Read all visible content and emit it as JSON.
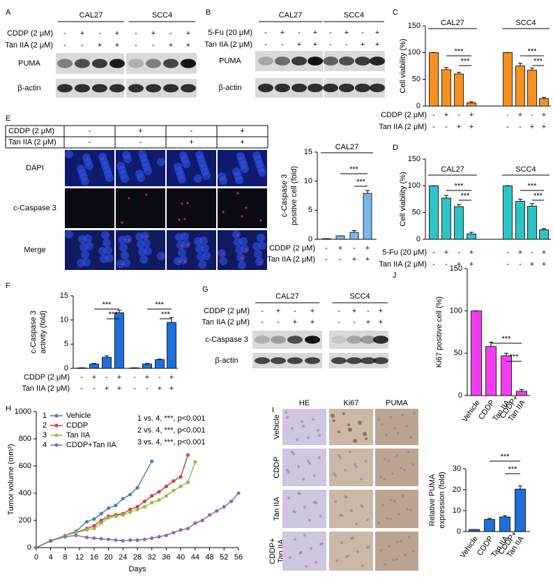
{
  "panels": {
    "A": {
      "label": "A",
      "groups": [
        "CAL27",
        "SCC4"
      ],
      "conditions": [
        {
          "name": "CDDP (2 μM)",
          "signs": [
            "-",
            "+",
            "-",
            "+",
            "-",
            "+",
            "-",
            "+"
          ]
        },
        {
          "name": "Tan IIA (2 μM)",
          "signs": [
            "-",
            "-",
            "+",
            "+",
            "-",
            "-",
            "+",
            "+"
          ]
        }
      ],
      "rows": [
        "PUMA",
        "β-actin"
      ]
    },
    "B": {
      "label": "B",
      "groups": [
        "CAL27",
        "SCC4"
      ],
      "conditions": [
        {
          "name": "5-Fu (20 μM)",
          "signs": [
            "-",
            "+",
            "-",
            "+",
            "-",
            "+",
            "-",
            "+"
          ]
        },
        {
          "name": "Tan IIA (2 μM)",
          "signs": [
            "-",
            "-",
            "+",
            "+",
            "-",
            "-",
            "+",
            "+"
          ]
        }
      ],
      "rows": [
        "PUMA",
        "β-actin"
      ]
    },
    "E": {
      "label": "E",
      "conditions": [
        {
          "name": "CDDP (2 μM)",
          "signs": [
            "-",
            "+",
            "-",
            "+"
          ]
        },
        {
          "name": "Tan IIA (2 μM)",
          "signs": [
            "-",
            "-",
            "+",
            "+"
          ]
        }
      ],
      "rows": [
        "DAPI",
        "c-Caspase 3",
        "Merge"
      ]
    },
    "G": {
      "label": "G",
      "groups": [
        "CAL27",
        "SCC4"
      ],
      "conditions": [
        {
          "name": "CDDP (2 μM)",
          "signs": [
            "-",
            "+",
            "-",
            "+",
            "-",
            "+",
            "-",
            "+"
          ]
        },
        {
          "name": "Tan IIA (2 μM)",
          "signs": [
            "-",
            "-",
            "+",
            "+",
            "-",
            "-",
            "+",
            "+"
          ]
        }
      ],
      "rows": [
        "c-Caspase 3",
        "β-actin"
      ]
    },
    "I": {
      "label": "I",
      "columns": [
        "HE",
        "Ki67",
        "PUMA"
      ],
      "rows": [
        [
          "Vehicle"
        ],
        [
          "CDDP"
        ],
        [
          "Tan IIA"
        ],
        [
          "CDDP+",
          "Tan IIA"
        ]
      ]
    }
  },
  "chart_data": [
    {
      "type": "bar",
      "label": "C",
      "ylabel": [
        "Cell viability (%)"
      ],
      "ylim": [
        0,
        150
      ],
      "yticks": [
        0,
        50,
        100,
        150
      ],
      "series": [
        {
          "name": "CAL27",
          "color": "#f7901e",
          "values": [
            100,
            68,
            60,
            6
          ],
          "errors": [
            0,
            4,
            3,
            2
          ]
        },
        {
          "name": "SCC4",
          "color": "#f7901e",
          "values": [
            100,
            75,
            67,
            14
          ],
          "errors": [
            0,
            5,
            4,
            2
          ]
        }
      ],
      "conditions": [
        {
          "name": "CDDP (2 μM)",
          "signs": [
            "-",
            "+",
            "-",
            "+",
            "-",
            "+",
            "-",
            "+"
          ]
        },
        {
          "name": "Tan IIA (2 μM)",
          "signs": [
            "-",
            "-",
            "+",
            "+",
            "-",
            "-",
            "+",
            "+"
          ]
        }
      ],
      "annotations": [
        "***",
        "***",
        "***",
        "***"
      ]
    },
    {
      "type": "bar",
      "label": "D",
      "ylabel": [
        "Cell viability (%)"
      ],
      "ylim": [
        0,
        150
      ],
      "yticks": [
        0,
        50,
        100,
        150
      ],
      "series": [
        {
          "name": "CAL27",
          "color": "#2cc4c4",
          "values": [
            100,
            77,
            61,
            10
          ],
          "errors": [
            0,
            5,
            4,
            3
          ]
        },
        {
          "name": "SCC4",
          "color": "#2cc4c4",
          "values": [
            100,
            71,
            62,
            18
          ],
          "errors": [
            0,
            4,
            5,
            2
          ]
        }
      ],
      "conditions": [
        {
          "name": "5-Fu (20 μM)",
          "signs": [
            "-",
            "+",
            "-",
            "+",
            "-",
            "+",
            "-",
            "+"
          ]
        },
        {
          "name": "Tan IIA (2 μM)",
          "signs": [
            "-",
            "-",
            "+",
            "+",
            "-",
            "-",
            "+",
            "+"
          ]
        }
      ],
      "annotations": [
        "***",
        "***",
        "***",
        "***"
      ]
    },
    {
      "type": "bar",
      "ylabel": [
        "c-Caspase 3",
        "positive cell (fold)"
      ],
      "ylim": [
        0,
        15
      ],
      "yticks": [
        0,
        5,
        10,
        15
      ],
      "series": [
        {
          "name": "CAL27",
          "color": "#7bb6ea",
          "values": [
            0.1,
            0.6,
            1.2,
            7.9
          ],
          "errors": [
            0,
            0,
            0.3,
            0.5
          ]
        }
      ],
      "conditions": [
        {
          "name": "CDDP (2 μM)",
          "signs": [
            "-",
            "+",
            "-",
            "+"
          ]
        },
        {
          "name": "Tan IIA (2 μM)",
          "signs": [
            "-",
            "-",
            "+",
            "+"
          ]
        }
      ],
      "annotations": [
        "***",
        "***"
      ]
    },
    {
      "type": "bar",
      "label": "F",
      "ylabel": [
        "c-Caspase 3",
        "activity (fold)"
      ],
      "ylim": [
        0,
        15
      ],
      "yticks": [
        0,
        5,
        10,
        15
      ],
      "series": [
        {
          "color": "#1e6fd9",
          "values": [
            0.1,
            0.9,
            2.3,
            11.5
          ],
          "errors": [
            0,
            0.1,
            0.3,
            0.5
          ]
        },
        {
          "color": "#1e6fd9",
          "values": [
            0.1,
            0.9,
            1.8,
            9.5
          ],
          "errors": [
            0,
            0.1,
            0.1,
            1
          ]
        }
      ],
      "conditions": [
        {
          "name": "CDDP (2 μM)",
          "signs": [
            "-",
            "+",
            "-",
            "+",
            "-",
            "+",
            "-",
            "+"
          ]
        },
        {
          "name": "Tan IIA (2 μM)",
          "signs": [
            "-",
            "-",
            "+",
            "+",
            "-",
            "-",
            "+",
            "+"
          ]
        }
      ],
      "annotations": [
        "***",
        "***",
        "***",
        "***"
      ]
    },
    {
      "type": "line",
      "label": "H",
      "xlabel": "Days",
      "ylabel": [
        "Tumor volume (mm³)"
      ],
      "xlim": [
        0,
        56
      ],
      "xticks": [
        0,
        4,
        8,
        12,
        16,
        20,
        24,
        28,
        32,
        36,
        40,
        44,
        48,
        52,
        56
      ],
      "ylim": [
        0,
        1000
      ],
      "yticks": [
        0,
        200,
        400,
        600,
        800,
        1000
      ],
      "series": [
        {
          "number": 1,
          "name": "Vehicle",
          "color": "#4a7fc1",
          "x": [
            0,
            4,
            8,
            11,
            14,
            16,
            18,
            20,
            22,
            24,
            26,
            28,
            32
          ],
          "values": [
            0,
            50,
            90,
            120,
            190,
            210,
            250,
            290,
            310,
            360,
            390,
            440,
            635
          ]
        },
        {
          "number": 2,
          "name": "CDDP",
          "color": "#d43f3f",
          "x": [
            0,
            4,
            8,
            11,
            14,
            16,
            18,
            20,
            22,
            24,
            26,
            28,
            30,
            32,
            34,
            36,
            38,
            40,
            42
          ],
          "values": [
            0,
            50,
            90,
            110,
            140,
            160,
            200,
            230,
            240,
            250,
            280,
            300,
            340,
            380,
            410,
            450,
            490,
            520,
            680
          ]
        },
        {
          "number": 3,
          "name": "Tan IIA",
          "color": "#93c04a",
          "x": [
            0,
            4,
            8,
            11,
            14,
            16,
            18,
            20,
            22,
            24,
            26,
            28,
            30,
            32,
            34,
            36,
            38,
            40,
            42,
            44
          ],
          "values": [
            0,
            50,
            90,
            110,
            130,
            140,
            180,
            220,
            230,
            240,
            260,
            280,
            300,
            330,
            350,
            380,
            420,
            450,
            480,
            630
          ]
        },
        {
          "number": 4,
          "name": "CDDP+Tan IIA",
          "color": "#8e6bb0",
          "x": [
            0,
            4,
            8,
            11,
            14,
            16,
            18,
            20,
            22,
            24,
            26,
            28,
            30,
            32,
            34,
            36,
            38,
            40,
            42,
            44,
            46,
            48,
            50,
            52,
            54,
            56
          ],
          "values": [
            0,
            50,
            80,
            90,
            75,
            70,
            65,
            60,
            55,
            50,
            55,
            55,
            60,
            70,
            80,
            90,
            110,
            130,
            140,
            180,
            200,
            240,
            270,
            300,
            340,
            400
          ]
        }
      ],
      "annotations": [
        "1 vs. 4, ***, p<0.001",
        "2 vs. 4, ***, p<0.001",
        "3 vs. 4, ***, p<0.001"
      ]
    },
    {
      "type": "bar",
      "label": "J",
      "ylabel": [
        "Ki67 positive cell (%)"
      ],
      "ylim": [
        0,
        150
      ],
      "yticks": [
        0,
        50,
        100,
        150
      ],
      "categories": [
        [
          "Vehicle"
        ],
        [
          "CDDP"
        ],
        [
          "Tan IIA"
        ],
        [
          "CDDP+",
          "Tan IIA"
        ]
      ],
      "series": [
        {
          "color": "#f03ef0",
          "values": [
            100,
            58,
            47,
            5
          ],
          "errors": [
            0,
            5,
            3,
            2
          ]
        }
      ],
      "annotations": [
        "***",
        "***"
      ]
    },
    {
      "type": "bar",
      "ylabel": [
        "Relative PUMA",
        "expression (fold)"
      ],
      "ylim": [
        0,
        30
      ],
      "yticks": [
        0,
        10,
        20,
        30
      ],
      "categories": [
        [
          "Vehicle"
        ],
        [
          "CDDP"
        ],
        [
          "Tan IIA"
        ],
        [
          "CDDP+",
          "Tan IIA"
        ]
      ],
      "series": [
        {
          "color": "#1e6fd9",
          "values": [
            1,
            5.8,
            7,
            20.3
          ],
          "errors": [
            0,
            0.5,
            0.6,
            1.5
          ]
        }
      ],
      "annotations": [
        "***",
        "***"
      ]
    }
  ]
}
